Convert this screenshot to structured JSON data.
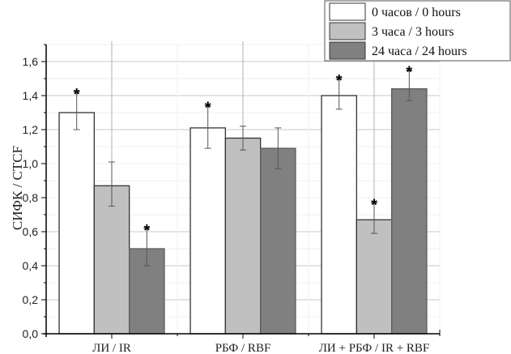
{
  "chart_data": {
    "type": "bar",
    "title": "",
    "xlabel": "",
    "ylabel": "СИФК / CTCF",
    "ylim": [
      0,
      1.7
    ],
    "yticks": [
      "0,0",
      "0,2",
      "0,4",
      "0,6",
      "0,8",
      "1,0",
      "1,2",
      "1,4",
      "1,6"
    ],
    "ytick_values": [
      0,
      0.2,
      0.4,
      0.6,
      0.8,
      1.0,
      1.2,
      1.4,
      1.6
    ],
    "grid": true,
    "legend_position": "top-right",
    "categories": [
      "ЛИ / IR",
      "РБФ / RBF",
      "ЛИ + РБФ / IR + RBF"
    ],
    "series": [
      {
        "name": "0 часов / 0 hours",
        "color": "#ffffff",
        "values": [
          1.3,
          1.21,
          1.4
        ],
        "err_low": [
          1.2,
          1.09,
          1.32
        ],
        "err_high": [
          1.42,
          1.34,
          1.5
        ],
        "significant": [
          true,
          true,
          true
        ]
      },
      {
        "name": "3 часа / 3 hours",
        "color": "#c0c0c0",
        "values": [
          0.87,
          1.15,
          0.67
        ],
        "err_low": [
          0.75,
          1.08,
          0.59
        ],
        "err_high": [
          1.01,
          1.22,
          0.77
        ],
        "significant": [
          false,
          false,
          true
        ]
      },
      {
        "name": "24 часа / 24 hours",
        "color": "#808080",
        "values": [
          0.5,
          1.09,
          1.44
        ],
        "err_low": [
          0.4,
          0.97,
          1.37
        ],
        "err_high": [
          0.62,
          1.21,
          1.55
        ],
        "significant": [
          true,
          false,
          true
        ]
      }
    ],
    "significance_marker": "*"
  }
}
